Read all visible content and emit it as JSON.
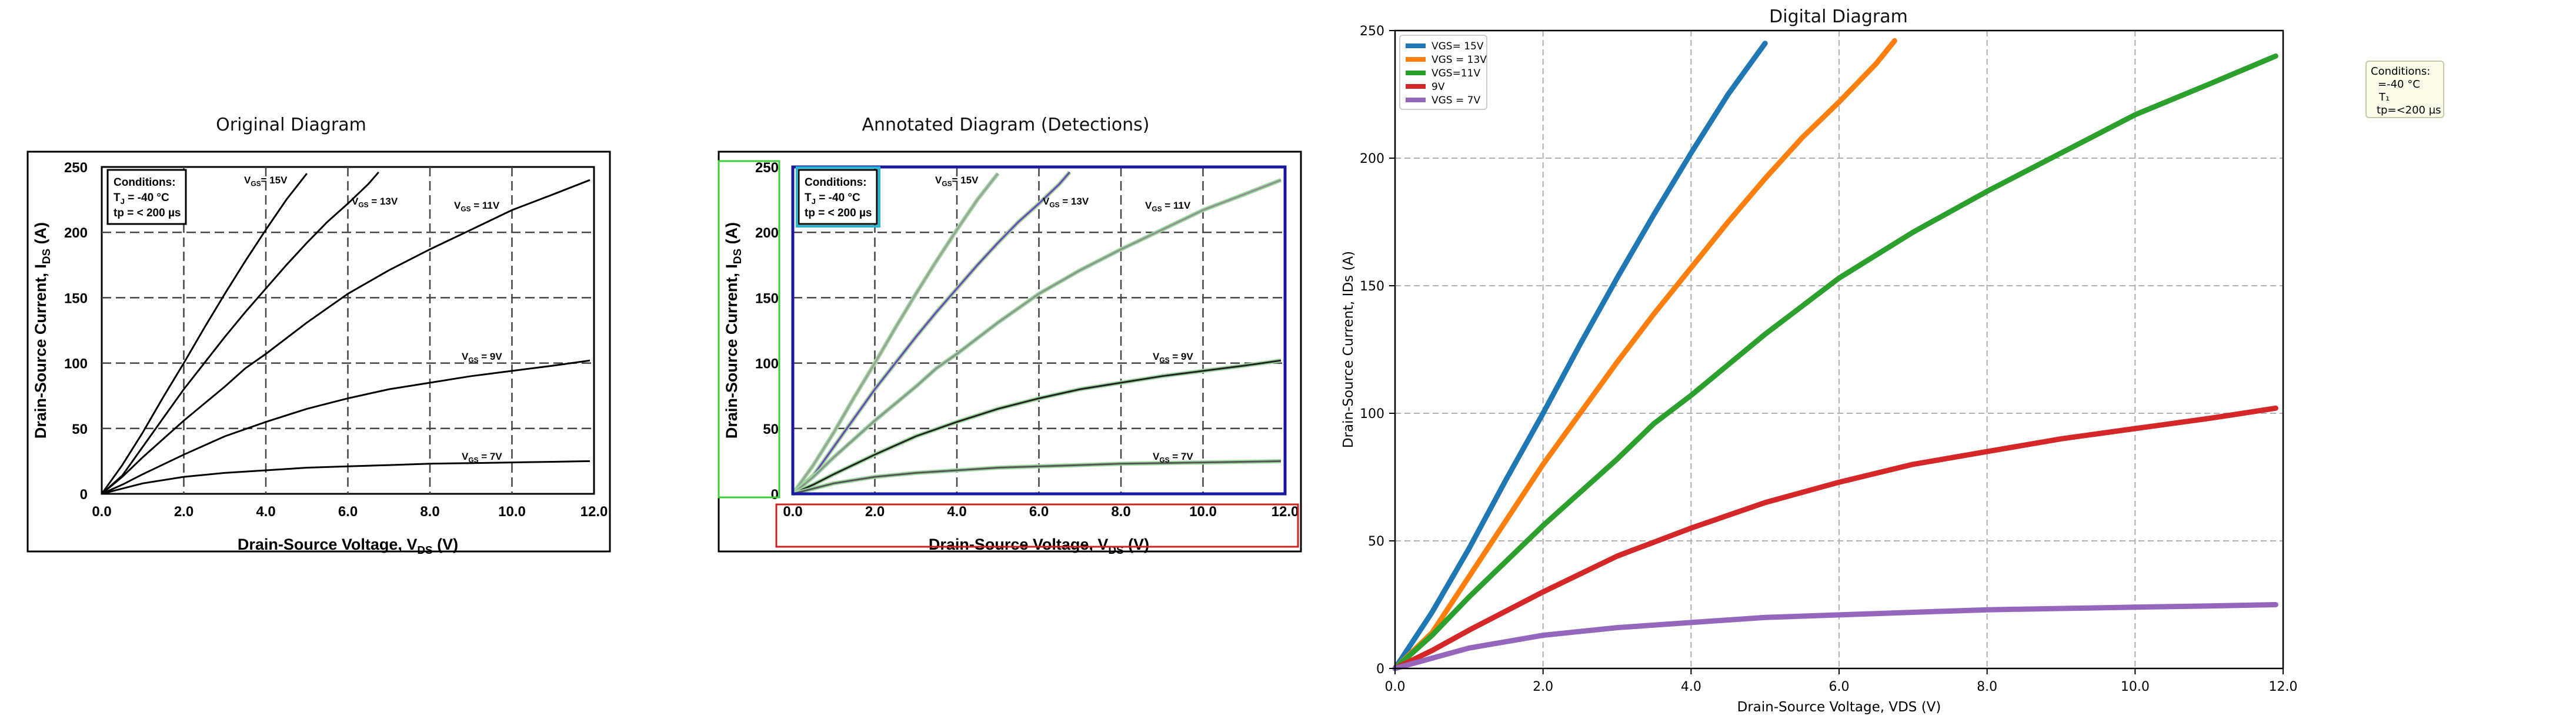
{
  "panels": {
    "original": {
      "title": "Original Diagram"
    },
    "annotated": {
      "title": "Annotated Diagram (Detections)"
    },
    "digital": {
      "title": "Digital Diagram"
    }
  },
  "source_chart": {
    "conditions": {
      "title": "Conditions:",
      "line1": "T",
      "line1_sub": "J",
      "line1_rest": " = -40 °C",
      "line2": "tp = < 200 µs"
    },
    "ylabel_parts": {
      "main": "Drain-Source Current, I",
      "sub": "DS",
      "tail": " (A)"
    },
    "xlabel_parts": {
      "main": "Drain-Source Voltage, V",
      "sub": "DS",
      "tail": " (V)"
    },
    "curve_labels": [
      {
        "main": "V",
        "sub": "GS",
        "tail": "= 15V"
      },
      {
        "main": "V",
        "sub": "GS",
        "tail": " = 13V"
      },
      {
        "main": "V",
        "sub": "GS",
        "tail": " = 11V"
      },
      {
        "main": "V",
        "sub": "GS",
        "tail": " = 9V"
      },
      {
        "main": "V",
        "sub": "GS",
        "tail": " = 7V"
      }
    ],
    "xticks": [
      "0.0",
      "2.0",
      "4.0",
      "6.0",
      "8.0",
      "10.0",
      "12.0"
    ],
    "yticks": [
      "0",
      "50",
      "100",
      "150",
      "200",
      "250"
    ]
  },
  "chart_data": {
    "type": "line",
    "title": "Digital Diagram",
    "xlabel": "Drain-Source Voltage, VDS (V)",
    "ylabel": "Drain-Source Current, IDs (A)",
    "xlim": [
      0,
      12
    ],
    "ylim": [
      0,
      250
    ],
    "xticks": [
      "0.0",
      "2.0",
      "4.0",
      "6.0",
      "8.0",
      "10.0",
      "12.0"
    ],
    "yticks": [
      "0",
      "50",
      "100",
      "150",
      "200",
      "250"
    ],
    "grid": true,
    "legend_position": "top-left",
    "annotation": {
      "lines": [
        "Conditions:",
        "=-40 °C",
        "T₁",
        "tp=<200 µs"
      ]
    },
    "series": [
      {
        "name": "VGS= 15V",
        "color": "#1f77b4",
        "x": [
          0,
          0.5,
          1.0,
          1.5,
          2.0,
          2.5,
          3.0,
          3.5,
          4.0,
          4.5,
          5.0
        ],
        "y": [
          0,
          22,
          47,
          74,
          100,
          127,
          153,
          178,
          202,
          225,
          245
        ]
      },
      {
        "name": "VGS = 13V",
        "color": "#ff7f0e",
        "x": [
          0,
          0.5,
          1.0,
          1.5,
          2.0,
          2.5,
          3.0,
          3.5,
          4.0,
          4.5,
          5.0,
          5.5,
          6.0,
          6.5,
          6.75
        ],
        "y": [
          0,
          14,
          36,
          58,
          80,
          100,
          120,
          139,
          157,
          175,
          192,
          208,
          222,
          237,
          246
        ]
      },
      {
        "name": "VGS=11V",
        "color": "#2ca02c",
        "x": [
          0,
          0.5,
          1.0,
          1.5,
          2.0,
          2.5,
          3.0,
          3.5,
          4.0,
          5.0,
          6.0,
          7.0,
          8.0,
          9.0,
          10.0,
          11.0,
          11.9
        ],
        "y": [
          0,
          13,
          28,
          42,
          56,
          69,
          82,
          96,
          107,
          131,
          153,
          171,
          187,
          202,
          217,
          229,
          240
        ]
      },
      {
        "name": "9V",
        "color": "#d62728",
        "x": [
          0,
          0.5,
          1.0,
          2.0,
          3.0,
          4.0,
          5.0,
          6.0,
          7.0,
          8.0,
          9.0,
          10.0,
          11.0,
          11.9
        ],
        "y": [
          0,
          7,
          15,
          30,
          44,
          55,
          65,
          73,
          80,
          85,
          90,
          94,
          98,
          102
        ]
      },
      {
        "name": "VGS = 7V",
        "color": "#9467bd",
        "x": [
          0,
          0.5,
          1.0,
          2.0,
          3.0,
          4.0,
          5.0,
          6.0,
          7.0,
          8.0,
          9.0,
          10.0,
          11.0,
          11.9
        ],
        "y": [
          0,
          4,
          8,
          13,
          16,
          18,
          20,
          21,
          22,
          23,
          23.5,
          24,
          24.5,
          25
        ]
      }
    ]
  }
}
